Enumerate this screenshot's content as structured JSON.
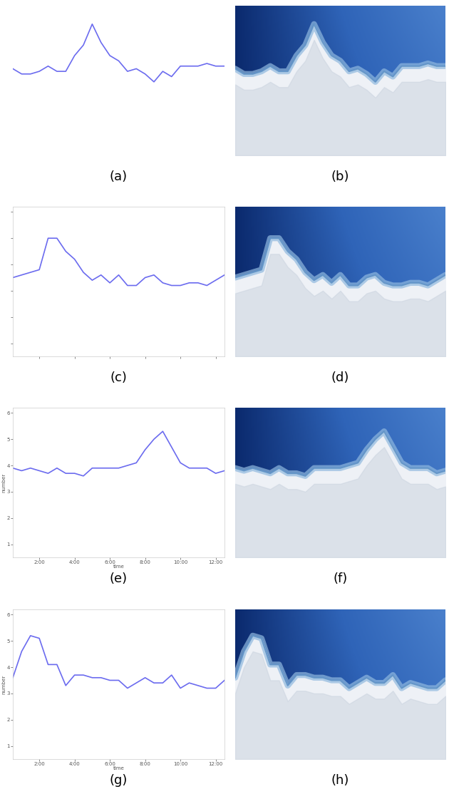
{
  "chart_data": [
    {
      "type": "line",
      "captions": [
        "(a)",
        "(b)"
      ],
      "color": "#6b6bef",
      "tick_labels": false,
      "x": [
        0.5,
        1.0,
        1.5,
        2.0,
        2.5,
        3.0,
        3.5,
        4.0,
        4.5,
        5.0,
        5.5,
        6.0,
        6.5,
        7.0,
        7.5,
        8.0,
        8.5,
        9.0,
        9.5,
        10.0,
        10.5,
        11.0,
        11.5,
        12.0,
        12.5
      ],
      "values": [
        3.8,
        3.6,
        3.6,
        3.7,
        3.9,
        3.7,
        3.7,
        4.3,
        4.7,
        5.5,
        4.8,
        4.3,
        4.1,
        3.7,
        3.8,
        3.6,
        3.3,
        3.7,
        3.5,
        3.9,
        3.9,
        3.9,
        4.0,
        3.9,
        3.9
      ],
      "xlim": [
        0.5,
        12.5
      ],
      "ylim": [
        0.5,
        6.2
      ]
    },
    {
      "type": "line",
      "captions": [
        "(c)",
        "(d)"
      ],
      "color": "#6b6bef",
      "tick_labels": false,
      "x": [
        0.5,
        1.0,
        1.5,
        2.0,
        2.5,
        3.0,
        3.5,
        4.0,
        4.5,
        5.0,
        5.5,
        6.0,
        6.5,
        7.0,
        7.5,
        8.0,
        8.5,
        9.0,
        9.5,
        10.0,
        10.5,
        11.0,
        11.5,
        12.0,
        12.5
      ],
      "values": [
        3.5,
        3.6,
        3.7,
        3.8,
        5.0,
        5.0,
        4.5,
        4.2,
        3.7,
        3.4,
        3.6,
        3.3,
        3.6,
        3.2,
        3.2,
        3.5,
        3.6,
        3.3,
        3.2,
        3.2,
        3.3,
        3.3,
        3.2,
        3.4,
        3.6
      ],
      "xlim": [
        0.5,
        12.5
      ],
      "ylim": [
        0.5,
        6.2
      ],
      "xticks": [
        2,
        4,
        6,
        8,
        10,
        12
      ],
      "yticks": [
        1,
        2,
        3,
        4,
        5,
        6
      ]
    },
    {
      "type": "line",
      "captions": [
        "(e)",
        "(f)"
      ],
      "color": "#6b6bef",
      "xlabel": "time",
      "ylabel": "number",
      "x": [
        0.5,
        1.0,
        1.5,
        2.0,
        2.5,
        3.0,
        3.5,
        4.0,
        4.5,
        5.0,
        5.5,
        6.0,
        6.5,
        7.0,
        7.5,
        8.0,
        8.5,
        9.0,
        9.5,
        10.0,
        10.5,
        11.0,
        11.5,
        12.0,
        12.5
      ],
      "values": [
        3.9,
        3.8,
        3.9,
        3.8,
        3.7,
        3.9,
        3.7,
        3.7,
        3.6,
        3.9,
        3.9,
        3.9,
        3.9,
        4.0,
        4.1,
        4.6,
        5.0,
        5.3,
        4.7,
        4.1,
        3.9,
        3.9,
        3.9,
        3.7,
        3.8
      ],
      "xlim": [
        0.5,
        12.5
      ],
      "ylim": [
        0.5,
        6.2
      ],
      "xticks": [
        {
          "value": 2,
          "label": "2:00"
        },
        {
          "value": 4,
          "label": "4:00"
        },
        {
          "value": 6,
          "label": "6:00"
        },
        {
          "value": 8,
          "label": "8:00"
        },
        {
          "value": 10,
          "label": "10:00"
        },
        {
          "value": 12,
          "label": "12:00"
        }
      ],
      "yticks": [
        1,
        2,
        3,
        4,
        5,
        6
      ]
    },
    {
      "type": "line",
      "captions": [
        "(g)",
        "(h)"
      ],
      "color": "#6b6bef",
      "xlabel": "time",
      "ylabel": "number",
      "x": [
        0.5,
        1.0,
        1.5,
        2.0,
        2.5,
        3.0,
        3.5,
        4.0,
        4.5,
        5.0,
        5.5,
        6.0,
        6.5,
        7.0,
        7.5,
        8.0,
        8.5,
        9.0,
        9.5,
        10.0,
        10.5,
        11.0,
        11.5,
        12.0,
        12.5
      ],
      "values": [
        3.6,
        4.6,
        5.2,
        5.1,
        4.1,
        4.1,
        3.3,
        3.7,
        3.7,
        3.6,
        3.6,
        3.5,
        3.5,
        3.2,
        3.4,
        3.6,
        3.4,
        3.4,
        3.7,
        3.2,
        3.4,
        3.3,
        3.2,
        3.2,
        3.5
      ],
      "xlim": [
        0.5,
        12.5
      ],
      "ylim": [
        0.5,
        6.2
      ],
      "xticks": [
        {
          "value": 2,
          "label": "2:00"
        },
        {
          "value": 4,
          "label": "4:00"
        },
        {
          "value": 6,
          "label": "6:00"
        },
        {
          "value": 8,
          "label": "8:00"
        },
        {
          "value": 10,
          "label": "10:00"
        },
        {
          "value": 12,
          "label": "12:00"
        }
      ],
      "yticks": [
        1,
        2,
        3,
        4,
        5,
        6
      ]
    }
  ]
}
